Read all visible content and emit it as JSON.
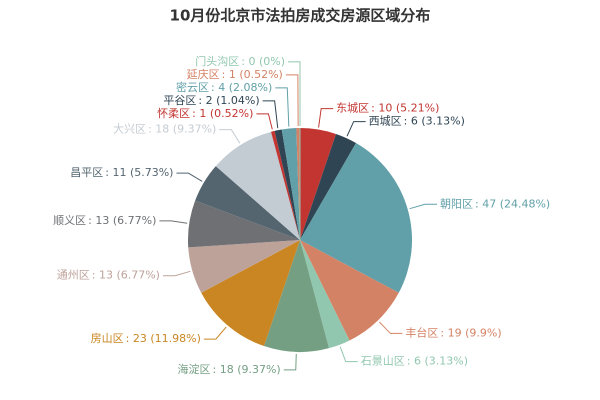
{
  "chart_data": {
    "type": "pie",
    "title": "10月份北京市法拍房成交房源区域分布",
    "categories": [
      "东城区",
      "西城区",
      "朝阳区",
      "丰台区",
      "石景山区",
      "海淀区",
      "房山区",
      "通州区",
      "顺义区",
      "昌平区",
      "大兴区",
      "怀柔区",
      "平谷区",
      "密云区",
      "延庆区",
      "门头沟区"
    ],
    "values": [
      10,
      6,
      47,
      19,
      6,
      18,
      23,
      13,
      13,
      11,
      18,
      1,
      2,
      4,
      1,
      0
    ],
    "value_labels": [
      ": 10 (5.21%)",
      ": 6 (3.13%)",
      ": 47 (24.48%)",
      ": 19 (9.9%)",
      ": 6 (3.13%)",
      ": 18 (9.37%)",
      ": 23 (11.98%)",
      ": 13 (6.77%)",
      ": 13 (6.77%)",
      ": 11 (5.73%)",
      ": 18 (9.37%)",
      ": 1 (0.52%)",
      ": 2 (1.04%)",
      ": 4 (2.08%)",
      ": 1 (0.52%)",
      ": 0 (0%)"
    ],
    "colors": [
      "#c23531",
      "#2f4554",
      "#61a0a8",
      "#d48265",
      "#91c7ae",
      "#749f83",
      "#ca8622",
      "#bda29a",
      "#6e7074",
      "#546570",
      "#c4ccd3",
      "#c23531",
      "#2f4554",
      "#61a0a8",
      "#d48265",
      "#91c7ae"
    ]
  }
}
